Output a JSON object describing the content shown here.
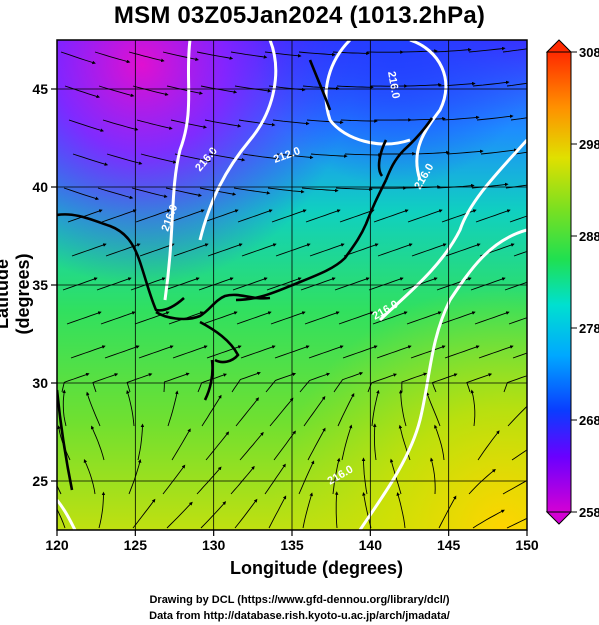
{
  "title": "MSM 03Z05Jan2024 (1013.2hPa)",
  "xaxis": {
    "label": "Longitude (degrees)",
    "ticks": [
      120,
      125,
      130,
      135,
      140,
      145,
      150
    ]
  },
  "yaxis": {
    "label": "Latitude  (degrees)",
    "ticks": [
      25,
      30,
      35,
      40,
      45
    ]
  },
  "colorbar": {
    "ticks": [
      258,
      268,
      278,
      288,
      298,
      308
    ]
  },
  "contour_labels": [
    "216.0",
    "216.0",
    "212.0",
    "216.0",
    "216.0",
    "216.0",
    "216.0"
  ],
  "credits": {
    "line1": "Drawing by DCL (https://www.gfd-dennou.org/library/dcl/)",
    "line2": "Data from http://database.rish.kyoto-u.ac.jp/arch/jmadata/"
  },
  "colors": {
    "low": "#d400d4",
    "mid": "#40e080",
    "high": "#ffe000",
    "contour": "#ffffff",
    "coast": "#000000"
  },
  "chart_data": {
    "type": "heatmap",
    "title": "MSM 03Z05Jan2024 (1013.2hPa)",
    "xlabel": "Longitude (degrees)",
    "ylabel": "Latitude  (degrees)",
    "xlim": [
      120,
      150
    ],
    "ylim": [
      22.5,
      47.5
    ],
    "colorbar_range": [
      258,
      308
    ],
    "colormap": "rainbow",
    "overlays": [
      "streamlines",
      "white contours",
      "coastlines"
    ]
  }
}
